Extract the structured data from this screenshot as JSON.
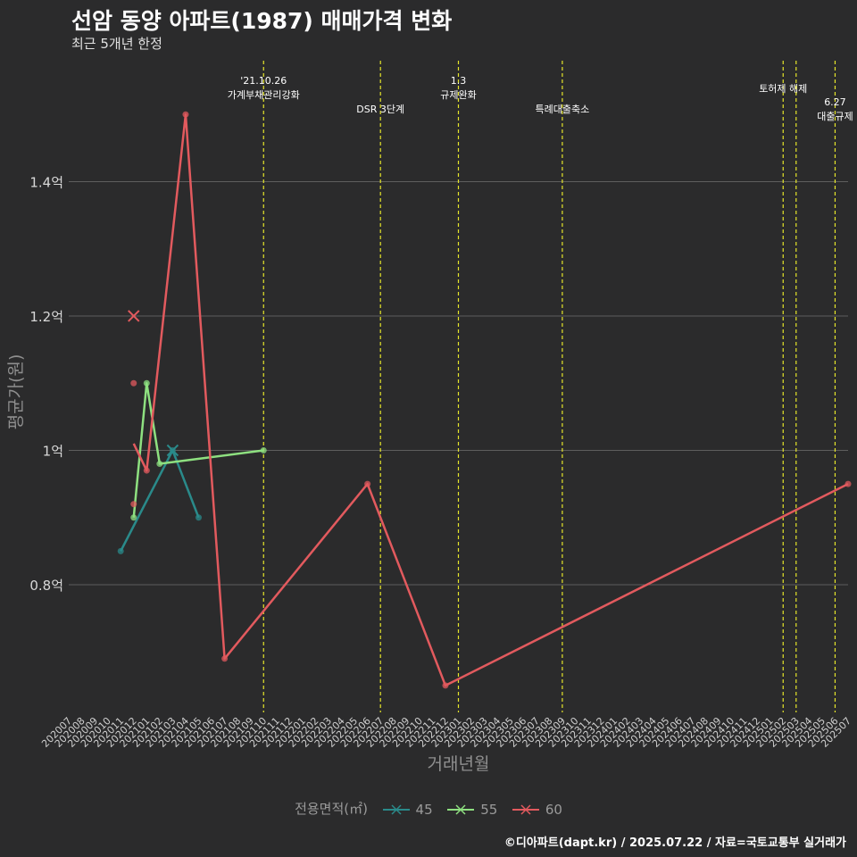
{
  "header": {
    "title": "선암 동양 아파트(1987) 매매가격 변화",
    "subtitle": "최근 5개년 한정"
  },
  "legend": {
    "title": "전용면적(㎡)",
    "items": [
      {
        "label": "45",
        "color": "#2a8a8a"
      },
      {
        "label": "55",
        "color": "#8ee080"
      },
      {
        "label": "60",
        "color": "#e25a5e"
      }
    ]
  },
  "caption": "©디아파트(dapt.kr) / 2025.07.22 / 자료=국토교통부 실거래가",
  "chart_data": {
    "type": "line",
    "title": "선암 동양 아파트(1987) 매매가격 변화",
    "xlabel": "거래년월",
    "ylabel": "평균가(원)",
    "ylim": [
      0.61,
      1.58
    ],
    "yticks": [
      {
        "value": 0.8,
        "label": "0.8억"
      },
      {
        "value": 1.0,
        "label": "1억"
      },
      {
        "value": 1.2,
        "label": "1.2억"
      },
      {
        "value": 1.4,
        "label": "1.4억"
      }
    ],
    "x_categories": [
      "202007",
      "202008",
      "202009",
      "202010",
      "202011",
      "202012",
      "202101",
      "202102",
      "202103",
      "202104",
      "202105",
      "202106",
      "202107",
      "202108",
      "202109",
      "202110",
      "202111",
      "202112",
      "202201",
      "202202",
      "202203",
      "202204",
      "202205",
      "202206",
      "202207",
      "202208",
      "202209",
      "202210",
      "202211",
      "202212",
      "202301",
      "202302",
      "202303",
      "202304",
      "202305",
      "202306",
      "202307",
      "202308",
      "202309",
      "202310",
      "202311",
      "202312",
      "202401",
      "202402",
      "202403",
      "202404",
      "202405",
      "202406",
      "202407",
      "202408",
      "202409",
      "202410",
      "202411",
      "202412",
      "202501",
      "202502",
      "202503",
      "202504",
      "202505",
      "202506",
      "202507"
    ],
    "series": [
      {
        "name": "45",
        "color": "#2a8a8a",
        "line": [
          {
            "x": "202011",
            "y": 0.85
          },
          {
            "x": "202103",
            "y": 1.0
          },
          {
            "x": "202105",
            "y": 0.9
          }
        ],
        "points": [
          {
            "x": "202011",
            "y": 0.85
          },
          {
            "x": "202103",
            "y": 1.0
          },
          {
            "x": "202105",
            "y": 0.9
          }
        ],
        "crosses": [
          {
            "x": "202103",
            "y": 1.0
          }
        ]
      },
      {
        "name": "55",
        "color": "#8ee080",
        "line": [
          {
            "x": "202012",
            "y": 0.9
          },
          {
            "x": "202101",
            "y": 1.1
          },
          {
            "x": "202102",
            "y": 0.98
          },
          {
            "x": "202110",
            "y": 1.0
          }
        ],
        "points": [
          {
            "x": "202012",
            "y": 0.9
          },
          {
            "x": "202101",
            "y": 1.1
          },
          {
            "x": "202102",
            "y": 0.98
          },
          {
            "x": "202110",
            "y": 1.0
          }
        ],
        "crosses": []
      },
      {
        "name": "60",
        "color": "#e25a5e",
        "line": [
          {
            "x": "202012",
            "y": 1.01
          },
          {
            "x": "202101",
            "y": 0.97
          },
          {
            "x": "202104",
            "y": 1.5
          },
          {
            "x": "202107",
            "y": 0.69
          },
          {
            "x": "202206",
            "y": 0.95
          },
          {
            "x": "202212",
            "y": 0.65
          },
          {
            "x": "202507",
            "y": 0.95
          }
        ],
        "points": [
          {
            "x": "202012",
            "y": 1.1
          },
          {
            "x": "202012",
            "y": 0.92
          },
          {
            "x": "202101",
            "y": 0.97
          },
          {
            "x": "202104",
            "y": 1.5
          },
          {
            "x": "202107",
            "y": 0.69
          },
          {
            "x": "202206",
            "y": 0.95
          },
          {
            "x": "202212",
            "y": 0.65
          },
          {
            "x": "202507",
            "y": 0.95
          }
        ],
        "crosses": [
          {
            "x": "202012",
            "y": 1.2
          }
        ]
      }
    ],
    "events": [
      {
        "x": "202110",
        "lines": [
          "'21.10.26",
          "가계부채관리강화"
        ]
      },
      {
        "x": "202207",
        "lines": [
          "DSR 3단계"
        ]
      },
      {
        "x": "202301",
        "lines": [
          "1.3",
          "규제완화"
        ]
      },
      {
        "x": "202309",
        "lines": [
          "특례대출축소"
        ]
      },
      {
        "x": "202502",
        "lines": [
          "토허제 해제"
        ]
      },
      {
        "x": "202503",
        "lines": []
      },
      {
        "x": "202506",
        "lines": [
          "6.27",
          "대출규제"
        ]
      }
    ]
  }
}
